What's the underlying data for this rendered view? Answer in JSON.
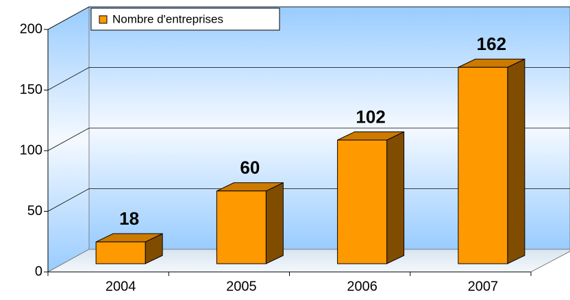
{
  "chart_data": {
    "type": "bar",
    "categories": [
      "2004",
      "2005",
      "2006",
      "2007"
    ],
    "series": [
      {
        "name": "Nombre d'entreprises",
        "color": "#ff9900",
        "values": [
          18,
          60,
          102,
          162
        ]
      }
    ],
    "ylim": [
      0,
      200
    ],
    "yticks": [
      0,
      50,
      100,
      150,
      200
    ],
    "grid": true,
    "legend": "top-left"
  }
}
